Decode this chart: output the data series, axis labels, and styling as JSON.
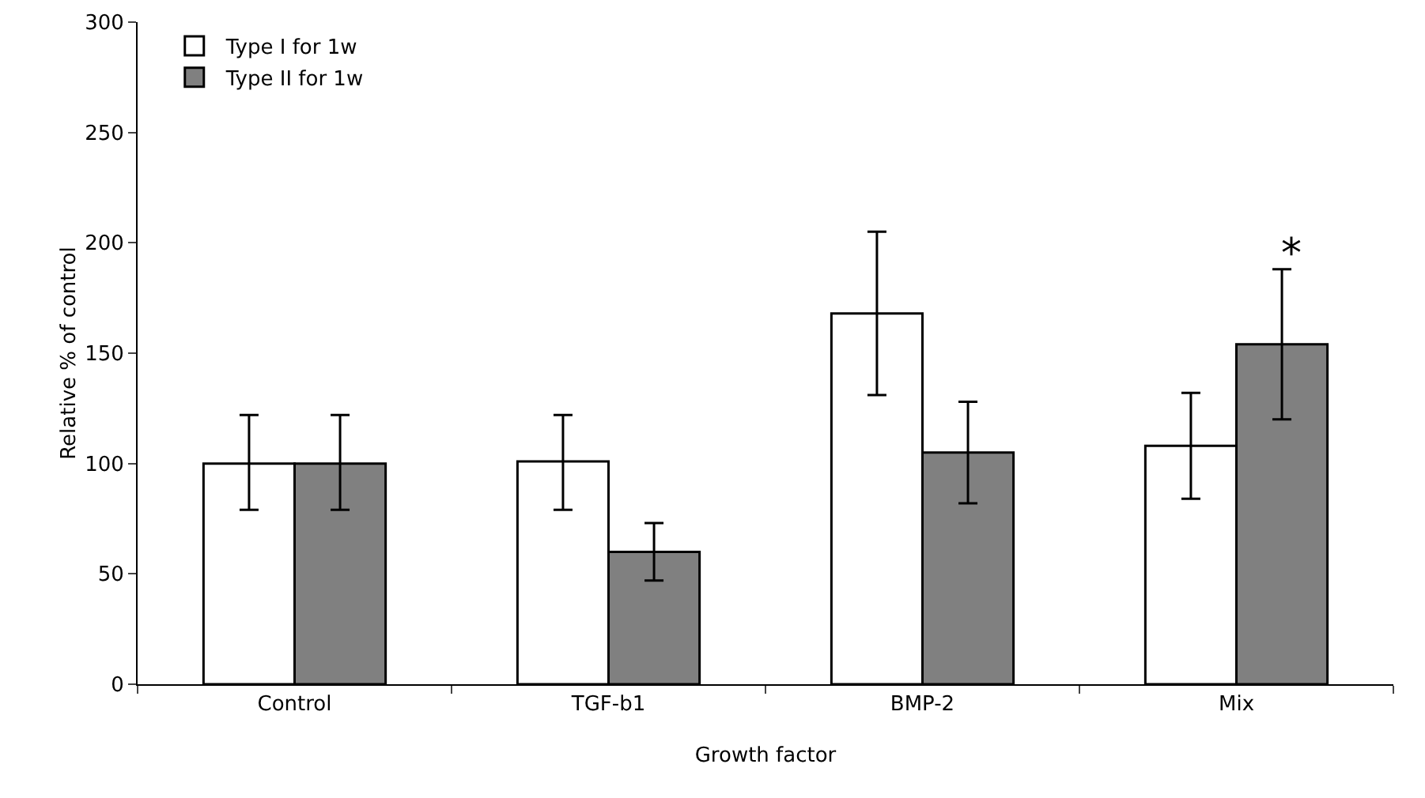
{
  "chart_data": {
    "type": "bar",
    "xlabel": "Growth factor",
    "ylabel": "Relative % of control",
    "categories": [
      "Control",
      "TGF-b1",
      "BMP-2",
      "Mix"
    ],
    "series": [
      {
        "name": "Type I for 1w",
        "color": "#ffffff",
        "values": [
          100,
          101,
          168,
          108
        ],
        "errors": [
          [
            79,
            122
          ],
          [
            79,
            122
          ],
          [
            131,
            205
          ],
          [
            84,
            132
          ]
        ]
      },
      {
        "name": "Type II for 1w",
        "color": "#808080",
        "values": [
          100,
          60,
          105,
          154
        ],
        "errors": [
          [
            79,
            122
          ],
          [
            47,
            73
          ],
          [
            82,
            128
          ],
          [
            120,
            188
          ]
        ]
      }
    ],
    "ylim": [
      0,
      300
    ],
    "yticks": [
      0,
      50,
      100,
      150,
      200,
      250,
      300
    ],
    "grid": false,
    "legend": "top left",
    "annotations": [
      "*"
    ]
  }
}
